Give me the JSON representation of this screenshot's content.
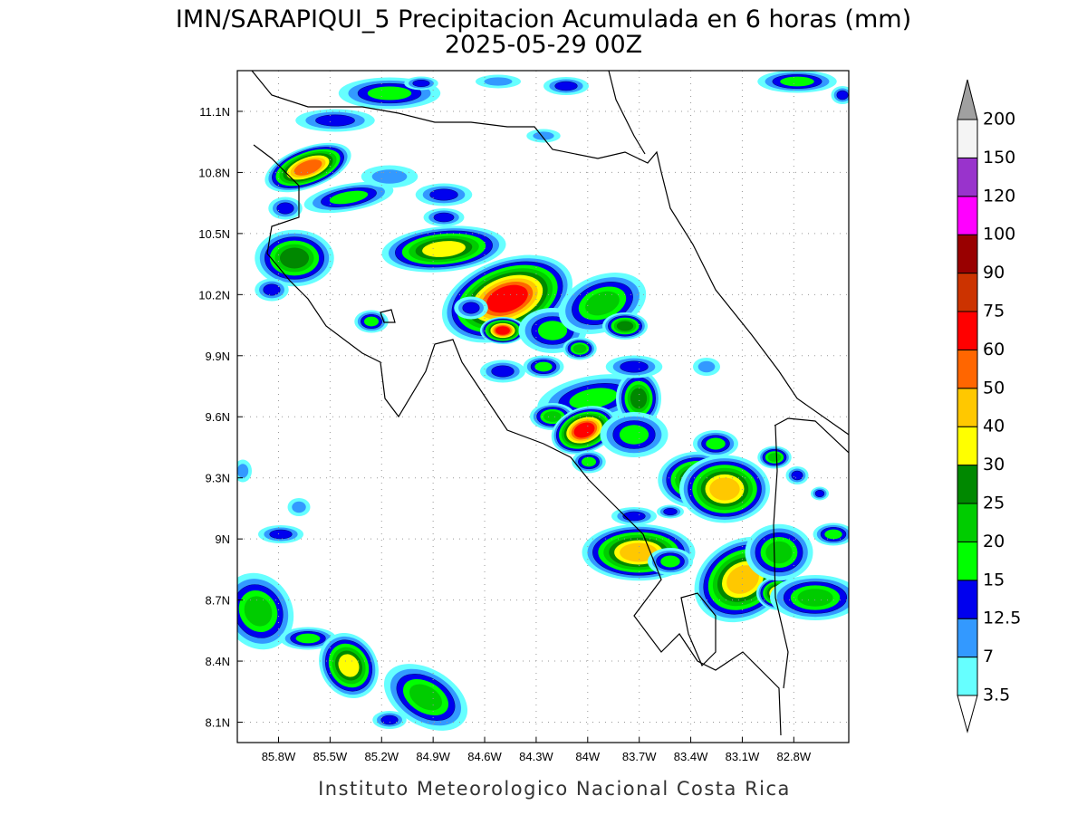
{
  "title": "IMN/SARAPIQUI_5 Precipitacion Acumulada en 6 horas (mm)",
  "subtitle": "2025-05-29 00Z",
  "footer": "Instituto Meteorologico Nacional Costa Rica",
  "map": {
    "xlim": [
      -86.04,
      -82.48
    ],
    "ylim": [
      8.0,
      11.3
    ],
    "xticks": [
      {
        "value": -85.8,
        "label": "85.8W"
      },
      {
        "value": -85.5,
        "label": "85.5W"
      },
      {
        "value": -85.2,
        "label": "85.2W"
      },
      {
        "value": -84.9,
        "label": "84.9W"
      },
      {
        "value": -84.6,
        "label": "84.6W"
      },
      {
        "value": -84.3,
        "label": "84.3W"
      },
      {
        "value": -84.0,
        "label": "84W"
      },
      {
        "value": -83.7,
        "label": "83.7W"
      },
      {
        "value": -83.4,
        "label": "83.4W"
      },
      {
        "value": -83.1,
        "label": "83.1W"
      },
      {
        "value": -82.8,
        "label": "82.8W"
      }
    ],
    "yticks": [
      {
        "value": 8.1,
        "label": "8.1N"
      },
      {
        "value": 8.4,
        "label": "8.4N"
      },
      {
        "value": 8.7,
        "label": "8.7N"
      },
      {
        "value": 9.0,
        "label": "9N"
      },
      {
        "value": 9.3,
        "label": "9.3N"
      },
      {
        "value": 9.6,
        "label": "9.6N"
      },
      {
        "value": 9.9,
        "label": "9.9N"
      },
      {
        "value": 10.2,
        "label": "10.2N"
      },
      {
        "value": 10.5,
        "label": "10.5N"
      },
      {
        "value": 10.8,
        "label": "10.8N"
      },
      {
        "value": 11.1,
        "label": "11.1N"
      }
    ],
    "grid": true
  },
  "legend": {
    "levels": [
      3.5,
      7,
      12.5,
      15,
      20,
      25,
      30,
      40,
      50,
      60,
      75,
      90,
      100,
      120,
      150,
      200
    ],
    "colors": [
      "#66ffff",
      "#3399ff",
      "#0000ee",
      "#00ff00",
      "#00cc00",
      "#008800",
      "#ffff00",
      "#ffc800",
      "#ff6600",
      "#ff0000",
      "#cc3300",
      "#990000",
      "#ff00ff",
      "#9933cc",
      "#f4f4f4"
    ],
    "under_color": "#ffffff",
    "over_color": "#a0a0a0"
  }
}
